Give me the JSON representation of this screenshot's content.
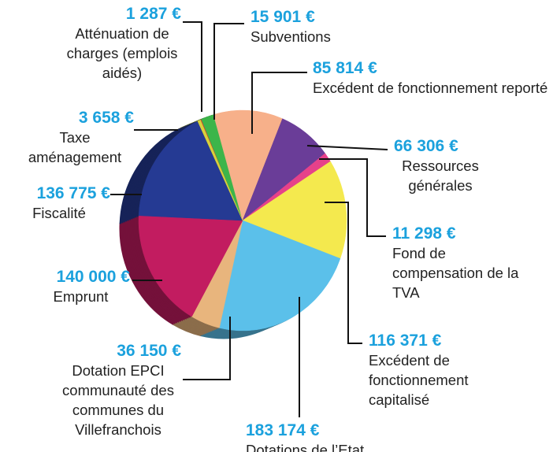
{
  "chart_data": {
    "type": "pie",
    "categories": [
      "Atténuation de charges (emplois aidés)",
      "Subventions",
      "Excédent de fonctionnement reporté",
      "Ressources générales",
      "Fond de compensation de la TVA",
      "Excédent de fonctionnement capitalisé",
      "Dotations de l’Etat",
      "Dotation EPCI communauté des communes du Villefranchois",
      "Emprunt",
      "Fiscalité",
      "Taxe aménagement"
    ],
    "values": [
      1287,
      15901,
      85814,
      66306,
      11298,
      116371,
      183174,
      36150,
      140000,
      136775,
      3658
    ],
    "value_labels": [
      "1 287 €",
      "15 901 €",
      "85 814 €",
      "66 306 €",
      "11 298 €",
      "116 371 €",
      "183 174 €",
      "36 150 €",
      "140 000 €",
      "136 775 €",
      "3 658 €"
    ],
    "colors": [
      "#d9332b",
      "#3cb54a",
      "#f7b08a",
      "#6a3d98",
      "#e6418a",
      "#f4e94e",
      "#5bc0ea",
      "#e8b57d",
      "#c21c60",
      "#253a93",
      "#d8d23a"
    ]
  }
}
